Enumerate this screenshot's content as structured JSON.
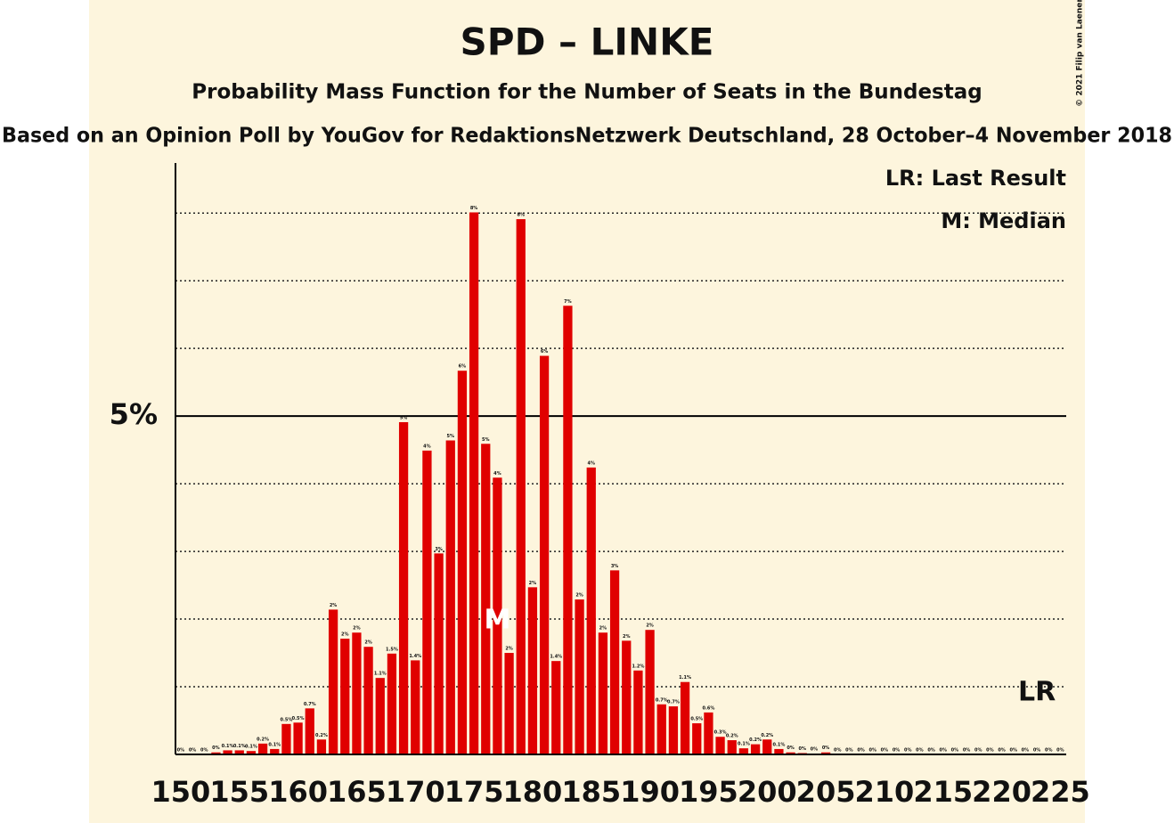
{
  "chart_data": {
    "type": "bar",
    "title": "SPD – LINKE",
    "subtitle": "Probability Mass Function for the Number of Seats in the Bundestag",
    "source": "Based on an Opinion Poll by YouGov for RedaktionsNetzwerk Deutschland, 28 October–4 November 2018",
    "copyright": "© 2021 Filip van Laenen",
    "legend": [
      "LR: Last Result",
      "M: Median"
    ],
    "color": "#e00000",
    "x": [
      150,
      151,
      152,
      153,
      154,
      155,
      156,
      157,
      158,
      159,
      160,
      161,
      162,
      163,
      164,
      165,
      166,
      167,
      168,
      169,
      170,
      171,
      172,
      173,
      174,
      175,
      176,
      177,
      178,
      179,
      180,
      181,
      182,
      183,
      184,
      185,
      186,
      187,
      188,
      189,
      190,
      191,
      192,
      193,
      194,
      195,
      196,
      197,
      198,
      199,
      200,
      201,
      202,
      203,
      204,
      205,
      206,
      207,
      208,
      209,
      210,
      211,
      212,
      213,
      214,
      215,
      216,
      217,
      218,
      219,
      220,
      221,
      222,
      223,
      224,
      225
    ],
    "values": [
      0,
      0,
      0,
      0.03,
      0.06,
      0.06,
      0.05,
      0.16,
      0.08,
      0.45,
      0.47,
      0.68,
      0.22,
      2.14,
      1.71,
      1.8,
      1.59,
      1.13,
      1.49,
      4.91,
      1.39,
      4.49,
      2.97,
      4.64,
      5.67,
      8.01,
      4.59,
      4.09,
      1.5,
      7.91,
      2.47,
      5.89,
      1.38,
      6.63,
      2.29,
      4.24,
      1.8,
      2.72,
      1.68,
      1.24,
      1.84,
      0.74,
      0.71,
      1.07,
      0.46,
      0.62,
      0.26,
      0.21,
      0.09,
      0.15,
      0.22,
      0.08,
      0.03,
      0.02,
      0.01,
      0.03,
      0,
      0,
      0,
      0,
      0,
      0,
      0,
      0,
      0,
      0,
      0,
      0,
      0,
      0,
      0,
      0,
      0,
      0,
      0,
      0
    ],
    "value_labels": [
      "0%",
      "0%",
      "0%",
      "0%",
      "0.1%",
      "0.1%",
      "0.1%",
      "0.2%",
      "0.1%",
      "0.5%",
      "0.5%",
      "0.7%",
      "0.2%",
      "2%",
      "2%",
      "2%",
      "2%",
      "1.1%",
      "1.5%",
      "5%",
      "1.4%",
      "4%",
      "3%",
      "5%",
      "6%",
      "8%",
      "5%",
      "4%",
      "2%",
      "8%",
      "2%",
      "6%",
      "1.4%",
      "7%",
      "2%",
      "4%",
      "2%",
      "3%",
      "2%",
      "1.2%",
      "2%",
      "0.7%",
      "0.7%",
      "1.1%",
      "0.5%",
      "0.6%",
      "0.3%",
      "0.2%",
      "0.1%",
      "0.2%",
      "0.2%",
      "0.1%",
      "0%",
      "0%",
      "0%",
      "0%",
      "0%",
      "0%",
      "0%",
      "0%",
      "0%",
      "0%",
      "0%",
      "0%",
      "0%",
      "0%",
      "0%",
      "0%",
      "0%",
      "0%",
      "0%",
      "0%",
      "0%",
      "0%",
      "0%",
      "0%"
    ],
    "xlim": [
      149.55,
      225.5
    ],
    "xticks": [
      150,
      155,
      160,
      165,
      170,
      175,
      180,
      185,
      190,
      195,
      200,
      205,
      210,
      215,
      220,
      225
    ],
    "ylim": [
      0,
      8.74
    ],
    "yticks": [
      {
        "value": 5,
        "label": "5%"
      }
    ],
    "minor_gridlines": [
      1,
      2,
      3,
      4,
      6,
      7,
      8
    ],
    "median": {
      "label": "M",
      "x": 177
    },
    "last_result": {
      "label": "LR",
      "x": 223
    }
  }
}
